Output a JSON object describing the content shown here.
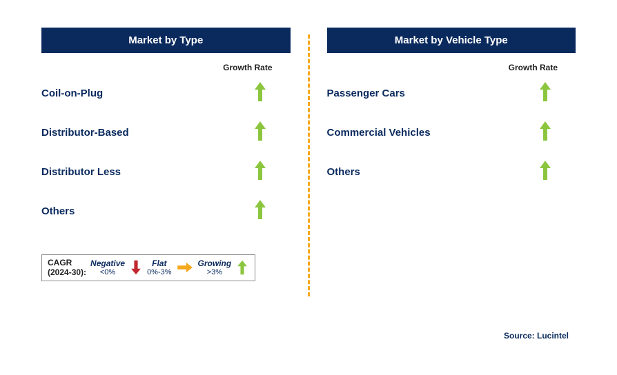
{
  "colors": {
    "header_bg": "#0a2a5e",
    "header_text": "#ffffff",
    "label_text": "#0a2a5e",
    "growth_arrow": "#8cc63f",
    "divider": "#f6a81c",
    "legend_text": "#0a2a5e",
    "negative_arrow": "#c1272d",
    "flat_arrow": "#f6a81c",
    "body_text": "#222222"
  },
  "left_panel": {
    "title": "Market by Type",
    "growth_label": "Growth Rate",
    "rows": [
      {
        "label": "Coil-on-Plug",
        "trend": "growing"
      },
      {
        "label": "Distributor-Based",
        "trend": "growing"
      },
      {
        "label": "Distributor Less",
        "trend": "growing"
      },
      {
        "label": "Others",
        "trend": "growing"
      }
    ]
  },
  "right_panel": {
    "title": "Market by Vehicle Type",
    "growth_label": "Growth Rate",
    "rows": [
      {
        "label": "Passenger Cars",
        "trend": "growing"
      },
      {
        "label": "Commercial Vehicles",
        "trend": "growing"
      },
      {
        "label": "Others",
        "trend": "growing"
      }
    ]
  },
  "legend": {
    "cagr_line1": "CAGR",
    "cagr_line2": "(2024-30):",
    "negative_label": "Negative",
    "negative_range": "<0%",
    "flat_label": "Flat",
    "flat_range": "0%-3%",
    "growing_label": "Growing",
    "growing_range": ">3%"
  },
  "source": "Source: Lucintel"
}
